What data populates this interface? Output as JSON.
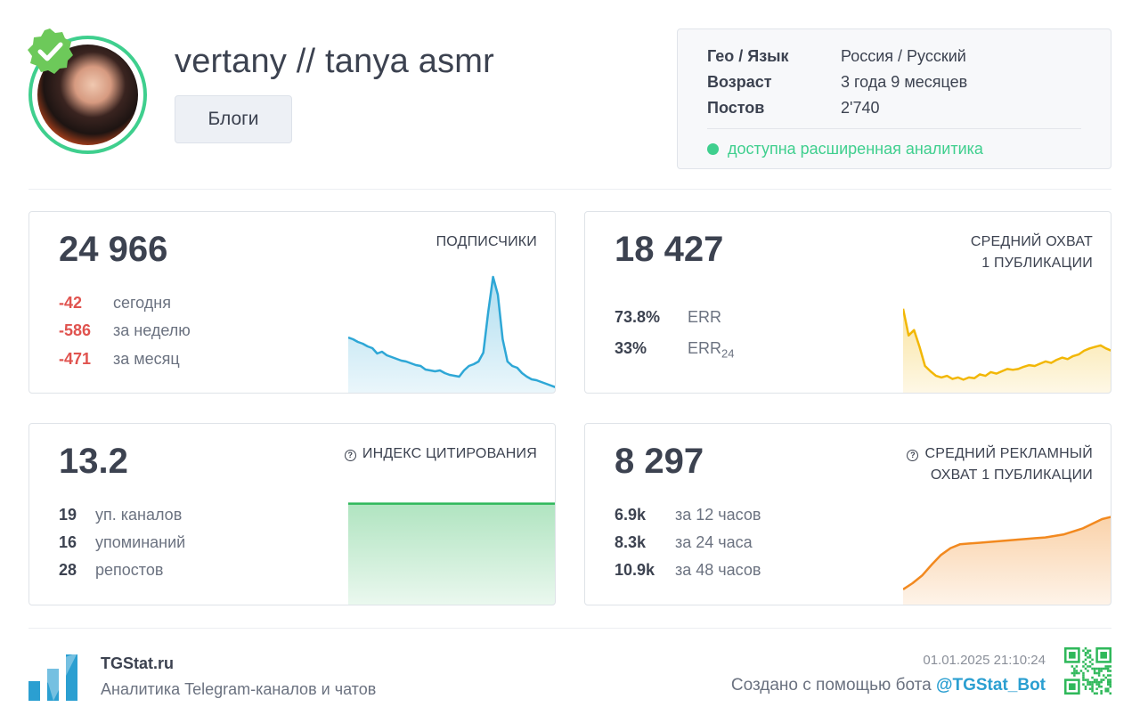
{
  "channel": {
    "title": "vertany // tanya asmr",
    "category": "Блоги",
    "avatar_icon": "avatar-photo",
    "verified_icon": "verified-badge-icon"
  },
  "info": {
    "rows": [
      {
        "key": "Гео / Язык",
        "value": "Россия / Русский"
      },
      {
        "key": "Возраст",
        "value": "3 года 9 месяцев"
      },
      {
        "key": "Постов",
        "value": "2'740"
      }
    ],
    "status": "доступна расширенная аналитика"
  },
  "cards": {
    "subscribers": {
      "value": "24 966",
      "label": "ПОДПИСЧИКИ",
      "stats": [
        {
          "n": "-42",
          "label": "сегодня"
        },
        {
          "n": "-586",
          "label": "за неделю"
        },
        {
          "n": "-471",
          "label": "за месяц"
        }
      ]
    },
    "reach": {
      "value": "18 427",
      "label_line1": "СРЕДНИЙ ОХВАТ",
      "label_line2": "1 ПУБЛИКАЦИИ",
      "stats": [
        {
          "n": "73.8%",
          "label": "ERR",
          "sub": ""
        },
        {
          "n": "33%",
          "label": "ERR",
          "sub": "24"
        }
      ]
    },
    "citation": {
      "value": "13.2",
      "label": "ИНДЕКС ЦИТИРОВАНИЯ",
      "stats": [
        {
          "n": "19",
          "label": "уп. каналов"
        },
        {
          "n": "16",
          "label": "упоминаний"
        },
        {
          "n": "28",
          "label": "репостов"
        }
      ]
    },
    "ad_reach": {
      "value": "8 297",
      "label_line1": "СРЕДНИЙ РЕКЛАМНЫЙ",
      "label_line2": "ОХВАТ 1 ПУБЛИКАЦИИ",
      "stats": [
        {
          "n": "6.9k",
          "label": "за 12 часов"
        },
        {
          "n": "8.3k",
          "label": "за 24 часа"
        },
        {
          "n": "10.9k",
          "label": "за 48 часов"
        }
      ]
    }
  },
  "footer": {
    "brand": "TGStat.ru",
    "tagline": "Аналитика Telegram-каналов и чатов",
    "timestamp": "01.01.2025 21:10:24",
    "made_by_prefix": "Создано с помощью бота ",
    "bot_handle": "@TGStat_Bot"
  },
  "colors": {
    "accent_green": "#3fcf8e",
    "negative": "#e0534f",
    "subscribers_line": "#2ea7d6",
    "reach_line": "#f2b705",
    "citation_line": "#2fb85a",
    "ad_line": "#f2891f",
    "link": "#2b9fd1"
  },
  "sparklines": {
    "subscribers": [
      62,
      60,
      57,
      55,
      52,
      50,
      44,
      46,
      42,
      40,
      38,
      36,
      35,
      33,
      31,
      30,
      26,
      25,
      24,
      25,
      22,
      20,
      19,
      18,
      25,
      30,
      32,
      35,
      45,
      90,
      130,
      110,
      60,
      35,
      30,
      28,
      22,
      18,
      15,
      14,
      12,
      10,
      8,
      6
    ],
    "reach": [
      110,
      75,
      82,
      60,
      35,
      28,
      22,
      20,
      22,
      18,
      20,
      17,
      20,
      19,
      24,
      22,
      27,
      25,
      28,
      31,
      30,
      31,
      34,
      36,
      35,
      38,
      41,
      39,
      43,
      46,
      44,
      48,
      50,
      55,
      58,
      60,
      62,
      58,
      55
    ],
    "citation": [
      124,
      124
    ],
    "ad_reach": [
      20,
      28,
      38,
      52,
      65,
      74,
      79,
      80,
      81,
      82,
      83,
      84,
      85,
      86,
      87,
      88,
      90,
      92,
      96,
      100,
      106,
      112,
      115
    ]
  }
}
